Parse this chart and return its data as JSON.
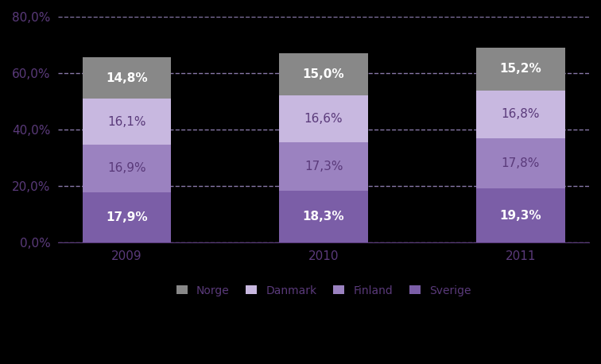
{
  "years": [
    "2009",
    "2010",
    "2011"
  ],
  "categories": [
    "Sverige",
    "Finland",
    "Danmark",
    "Norge"
  ],
  "values": {
    "Sverige": [
      17.9,
      18.3,
      19.3
    ],
    "Finland": [
      16.9,
      17.3,
      17.8
    ],
    "Danmark": [
      16.1,
      16.6,
      16.8
    ],
    "Norge": [
      14.8,
      15.0,
      15.2
    ]
  },
  "colors": {
    "Sverige": "#7B5EA7",
    "Finland": "#9B82C0",
    "Danmark": "#C8B8E0",
    "Norge": "#888888"
  },
  "label_color_dark": "#FFFFFF",
  "label_color_light": "#5A3A7A",
  "grid_color": "#8878A8",
  "axis_color": "#5A3A7A",
  "tick_color": "#5A3A7A",
  "background_color": "#000000",
  "plot_bg_color": "#000000",
  "ylim": [
    0,
    80
  ],
  "yticks": [
    0,
    20,
    40,
    60,
    80
  ],
  "ytick_labels": [
    "0,0%",
    "20,0%",
    "40,0%",
    "60,0%",
    "80,0%"
  ],
  "bar_width": 0.45,
  "label_fontsize": 11,
  "legend_fontsize": 10,
  "tick_fontsize": 11
}
